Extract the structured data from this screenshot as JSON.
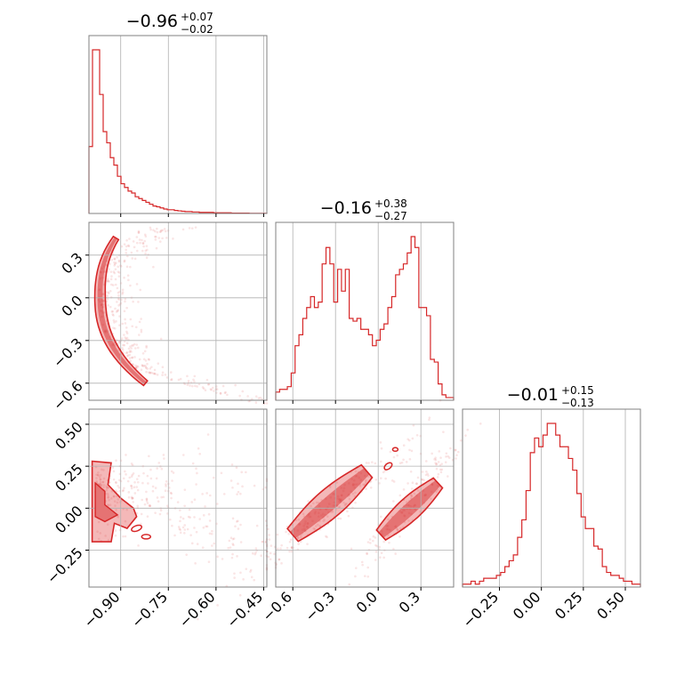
{
  "colors": {
    "main": "#d62728",
    "fill_light": "#f4b8b8",
    "fill_mid": "#e57373",
    "grid": "#b0b0b0",
    "spine": "#808080"
  },
  "chart_data": {
    "type": "corner",
    "params": [
      {
        "median": "−0.96",
        "plus": "+0.07",
        "minus": "−0.02",
        "range": [
          -1.0,
          -0.44
        ]
      },
      {
        "median": "−0.16",
        "plus": "+0.38",
        "minus": "−0.27",
        "range": [
          -0.72,
          0.53
        ]
      },
      {
        "median": "−0.01",
        "plus": "+0.15",
        "minus": "−0.13",
        "range": [
          -0.47,
          0.59
        ]
      }
    ],
    "ticks": {
      "p0": [
        {
          "v": -0.9,
          "t": "−0.90"
        },
        {
          "v": -0.75,
          "t": "−0.75"
        },
        {
          "v": -0.6,
          "t": "−0.60"
        },
        {
          "v": -0.45,
          "t": "−0.45"
        }
      ],
      "p1": [
        {
          "v": -0.6,
          "t": "−0.6"
        },
        {
          "v": -0.3,
          "t": "−0.3"
        },
        {
          "v": 0.0,
          "t": "0.0"
        },
        {
          "v": 0.3,
          "t": "0.3"
        }
      ],
      "p2": [
        {
          "v": -0.25,
          "t": "−0.25"
        },
        {
          "v": 0.0,
          "t": "0.00"
        },
        {
          "v": 0.25,
          "t": "0.25"
        },
        {
          "v": 0.5,
          "t": "0.50"
        }
      ]
    },
    "hist": [
      {
        "lo": -1.0,
        "hi": -0.44,
        "counts": [
          18,
          44,
          44,
          32,
          22,
          19,
          15,
          13,
          10,
          8,
          7,
          6,
          5.5,
          4.5,
          4,
          3.5,
          3,
          2.5,
          2,
          1.8,
          1.5,
          1.2,
          1,
          1,
          0.8,
          0.7,
          0.6,
          0.5,
          0.5,
          0.4,
          0.4,
          0.3,
          0.3,
          0.3,
          0.3,
          0.2,
          0.2,
          0.2,
          0.2,
          0.2,
          0.1,
          0.1,
          0.1,
          0.1,
          0.1,
          0.05,
          0.05,
          0.05,
          0.05,
          0.05
        ]
      },
      {
        "lo": -0.72,
        "hi": 0.53,
        "counts": [
          3,
          4,
          4,
          5,
          10,
          20,
          24,
          30,
          34,
          38,
          34,
          36,
          50,
          56,
          50,
          36,
          48,
          40,
          48,
          30,
          29,
          30,
          26,
          26,
          24,
          20,
          22,
          26,
          28,
          34,
          38,
          46,
          48,
          50,
          54,
          60,
          56,
          34,
          34,
          31,
          15,
          14,
          6,
          2,
          1,
          1
        ]
      },
      {
        "lo": -0.47,
        "hi": 0.59,
        "counts": [
          1,
          1,
          2,
          1,
          2,
          3,
          3,
          3,
          4,
          5,
          7,
          9,
          11,
          17,
          23,
          33,
          46,
          51,
          48,
          52,
          56,
          56,
          52,
          48,
          48,
          44,
          40,
          32,
          24,
          20,
          20,
          14,
          13,
          7,
          5,
          4,
          4,
          3,
          2,
          2,
          1,
          1
        ]
      }
    ]
  }
}
